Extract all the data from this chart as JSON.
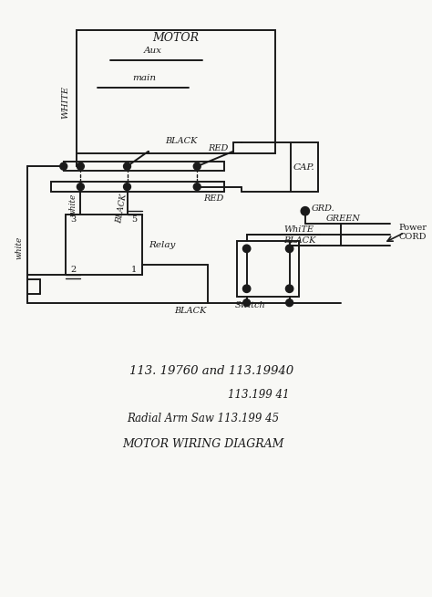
{
  "bg_color": "#f8f8f5",
  "line_color": "#1a1a1a",
  "text_color": "#1a1a1a",
  "annotations": {
    "motor": "MOTOR",
    "aux": "Aux",
    "main": "main",
    "white_left": "WHITE",
    "white_mid": "white",
    "white_bottom": "white",
    "black_upper": "BLACK",
    "red_upper": "RED",
    "red_lower": "RED",
    "black_lower": "BLACK",
    "black_relay": "BLACK",
    "cap": "CAP.",
    "grd": "GRD.",
    "green": "GREEN",
    "white_right": "WhiTE",
    "black_right": "BLACK",
    "power_cord": "Power\nCORD",
    "switch_label": "Switch",
    "relay_label": "Relay",
    "n3": "3",
    "n5": "5",
    "n2": "2",
    "n1": "1",
    "model1": "113. 19760 and 113.19940",
    "model2": "113.199 41",
    "model3": "Radial Arm Saw 113.199 45",
    "model4": "MOTOR WIRING DIAGRAM"
  }
}
